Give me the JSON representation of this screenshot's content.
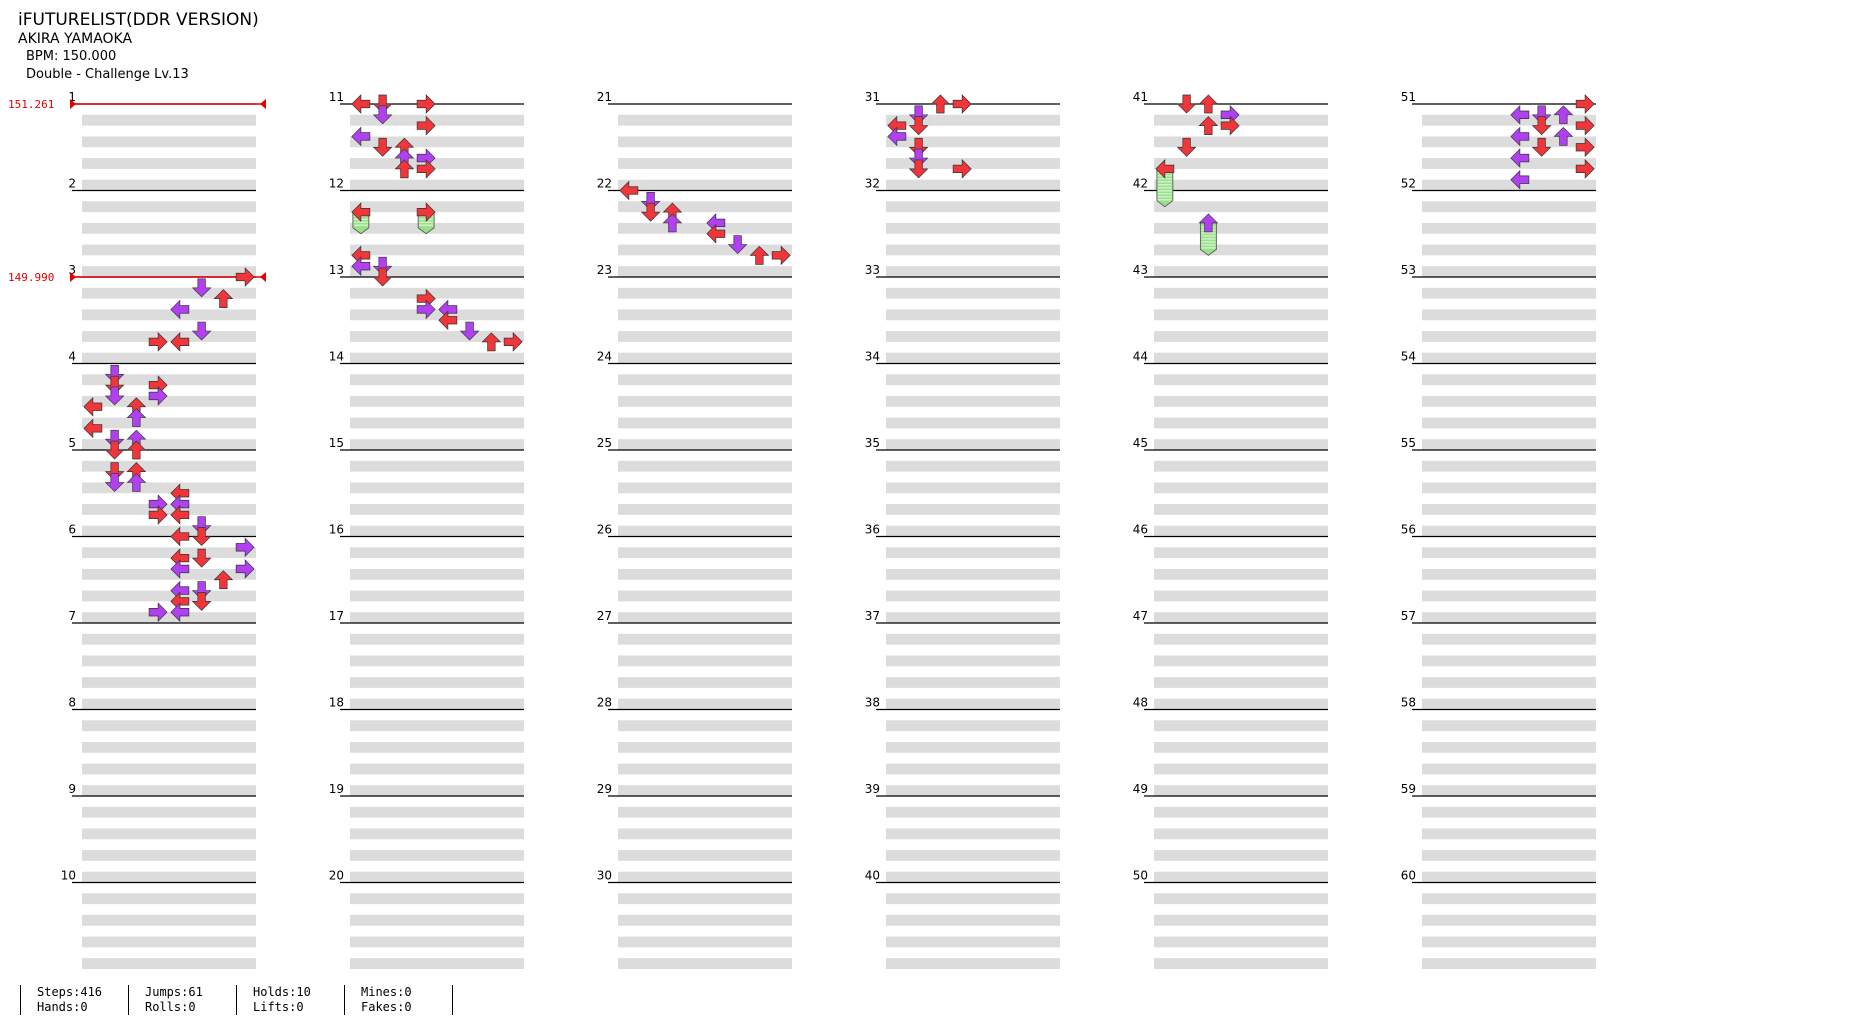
{
  "header": {
    "title": "iFUTURELIST(DDR VERSION)",
    "artist": "AKIRA YAMAOKA",
    "bpm_text": "BPM: 150.000",
    "difficulty_text": "Double - Challenge Lv.13"
  },
  "bpm_changes": [
    {
      "measure": 1,
      "beat": 0,
      "label": "151.261"
    },
    {
      "measure": 3,
      "beat": 0,
      "label": "149.990"
    }
  ],
  "colors": {
    "quarter_note": "#f0363a",
    "eighth_note": "#b040f0",
    "hold_fill": "#9ae08a",
    "shading": "#dcdcdc",
    "bpm_line": "#e00000"
  },
  "chart_data": {
    "type": "step_chart",
    "columns": 6,
    "measures_per_column": 10,
    "total_measures": 60,
    "measure_labels": [
      "1",
      "2",
      "3",
      "4",
      "5",
      "6",
      "7",
      "8",
      "9",
      "10",
      "11",
      "12",
      "13",
      "14",
      "15",
      "16",
      "17",
      "18",
      "19",
      "20",
      "21",
      "22",
      "23",
      "24",
      "25",
      "26",
      "27",
      "28",
      "29",
      "30",
      "31",
      "32",
      "33",
      "34",
      "35",
      "36",
      "37",
      "38",
      "39",
      "40",
      "41",
      "42",
      "43",
      "44",
      "45",
      "46",
      "47",
      "48",
      "49",
      "50",
      "51",
      "52",
      "53",
      "54",
      "55",
      "56",
      "57",
      "58",
      "59",
      "60"
    ],
    "lanes": [
      "P1-left",
      "P1-down",
      "P1-up",
      "P1-right",
      "P2-left",
      "P2-down",
      "P2-up",
      "P2-right"
    ],
    "notes": [
      {
        "m": 3,
        "b": 0,
        "l": 7,
        "d": "R"
      },
      {
        "m": 3,
        "b": 0.5,
        "l": 5,
        "d": "D"
      },
      {
        "m": 3,
        "b": 1,
        "l": 6,
        "d": "U"
      },
      {
        "m": 3,
        "b": 1.5,
        "l": 4,
        "d": "L"
      },
      {
        "m": 3,
        "b": 2.5,
        "l": 5,
        "d": "D"
      },
      {
        "m": 3,
        "b": 3,
        "l": 3,
        "d": "R"
      },
      {
        "m": 3,
        "b": 3,
        "l": 4,
        "d": "L"
      },
      {
        "m": 4,
        "b": 0.5,
        "l": 1,
        "d": "D"
      },
      {
        "m": 4,
        "b": 1,
        "l": 3,
        "d": "R"
      },
      {
        "m": 4,
        "b": 1,
        "l": 1,
        "d": "D"
      },
      {
        "m": 4,
        "b": 1.5,
        "l": 1,
        "d": "D"
      },
      {
        "m": 4,
        "b": 1.5,
        "l": 3,
        "d": "R"
      },
      {
        "m": 4,
        "b": 2,
        "l": 2,
        "d": "U"
      },
      {
        "m": 4,
        "b": 2,
        "l": 0,
        "d": "L"
      },
      {
        "m": 4,
        "b": 2.5,
        "l": 2,
        "d": "U"
      },
      {
        "m": 4,
        "b": 3,
        "l": 0,
        "d": "L"
      },
      {
        "m": 4,
        "b": 3.5,
        "l": 1,
        "d": "D"
      },
      {
        "m": 4,
        "b": 3.5,
        "l": 2,
        "d": "U"
      },
      {
        "m": 5,
        "b": 0,
        "l": 1,
        "d": "D"
      },
      {
        "m": 5,
        "b": 0,
        "l": 2,
        "d": "U"
      },
      {
        "m": 5,
        "b": 1,
        "l": 1,
        "d": "D"
      },
      {
        "m": 5,
        "b": 1,
        "l": 2,
        "d": "U"
      },
      {
        "m": 5,
        "b": 1.5,
        "l": 1,
        "d": "D"
      },
      {
        "m": 5,
        "b": 1.5,
        "l": 2,
        "d": "U"
      },
      {
        "m": 5,
        "b": 2,
        "l": 4,
        "d": "L"
      },
      {
        "m": 5,
        "b": 2.5,
        "l": 3,
        "d": "R"
      },
      {
        "m": 5,
        "b": 2.5,
        "l": 4,
        "d": "L"
      },
      {
        "m": 5,
        "b": 3,
        "l": 3,
        "d": "R"
      },
      {
        "m": 5,
        "b": 3,
        "l": 4,
        "d": "L"
      },
      {
        "m": 5,
        "b": 3.5,
        "l": 5,
        "d": "D"
      },
      {
        "m": 6,
        "b": 0,
        "l": 5,
        "d": "D"
      },
      {
        "m": 6,
        "b": 0,
        "l": 4,
        "d": "L"
      },
      {
        "m": 6,
        "b": 0.5,
        "l": 7,
        "d": "R"
      },
      {
        "m": 6,
        "b": 1,
        "l": 4,
        "d": "L"
      },
      {
        "m": 6,
        "b": 1,
        "l": 5,
        "d": "D"
      },
      {
        "m": 6,
        "b": 1.5,
        "l": 4,
        "d": "L"
      },
      {
        "m": 6,
        "b": 1.5,
        "l": 7,
        "d": "R"
      },
      {
        "m": 6,
        "b": 2,
        "l": 6,
        "d": "U"
      },
      {
        "m": 6,
        "b": 2.5,
        "l": 4,
        "d": "L"
      },
      {
        "m": 6,
        "b": 2.5,
        "l": 5,
        "d": "D"
      },
      {
        "m": 6,
        "b": 3,
        "l": 4,
        "d": "L"
      },
      {
        "m": 6,
        "b": 3,
        "l": 5,
        "d": "D"
      },
      {
        "m": 6,
        "b": 3.5,
        "l": 3,
        "d": "R"
      },
      {
        "m": 6,
        "b": 3.5,
        "l": 4,
        "d": "L"
      },
      {
        "m": 11,
        "b": 0,
        "l": 0,
        "d": "L"
      },
      {
        "m": 11,
        "b": 0,
        "l": 1,
        "d": "D"
      },
      {
        "m": 11,
        "b": 0,
        "l": 3,
        "d": "R"
      },
      {
        "m": 11,
        "b": 0.5,
        "l": 1,
        "d": "D"
      },
      {
        "m": 11,
        "b": 1,
        "l": 3,
        "d": "R"
      },
      {
        "m": 11,
        "b": 1.5,
        "l": 0,
        "d": "L"
      },
      {
        "m": 11,
        "b": 2,
        "l": 1,
        "d": "D"
      },
      {
        "m": 11,
        "b": 2,
        "l": 2,
        "d": "U"
      },
      {
        "m": 11,
        "b": 2.5,
        "l": 2,
        "d": "U"
      },
      {
        "m": 11,
        "b": 2.5,
        "l": 3,
        "d": "R"
      },
      {
        "m": 11,
        "b": 3,
        "l": 2,
        "d": "U"
      },
      {
        "m": 11,
        "b": 3,
        "l": 3,
        "d": "R"
      },
      {
        "m": 12,
        "b": 1,
        "l": 0,
        "d": "L",
        "hold": 1
      },
      {
        "m": 12,
        "b": 1,
        "l": 3,
        "d": "R",
        "hold": 1
      },
      {
        "m": 12,
        "b": 3,
        "l": 0,
        "d": "L"
      },
      {
        "m": 12,
        "b": 3.5,
        "l": 0,
        "d": "L"
      },
      {
        "m": 12,
        "b": 3.5,
        "l": 1,
        "d": "D"
      },
      {
        "m": 13,
        "b": 0,
        "l": 1,
        "d": "D"
      },
      {
        "m": 13,
        "b": 1,
        "l": 3,
        "d": "R"
      },
      {
        "m": 13,
        "b": 1.5,
        "l": 3,
        "d": "R"
      },
      {
        "m": 13,
        "b": 1.5,
        "l": 4,
        "d": "L"
      },
      {
        "m": 13,
        "b": 2,
        "l": 4,
        "d": "L"
      },
      {
        "m": 13,
        "b": 2.5,
        "l": 5,
        "d": "D"
      },
      {
        "m": 13,
        "b": 3,
        "l": 6,
        "d": "U"
      },
      {
        "m": 13,
        "b": 3,
        "l": 7,
        "d": "R"
      },
      {
        "m": 22,
        "b": 0,
        "l": 0,
        "d": "L"
      },
      {
        "m": 22,
        "b": 0.5,
        "l": 1,
        "d": "D"
      },
      {
        "m": 22,
        "b": 1,
        "l": 1,
        "d": "D"
      },
      {
        "m": 22,
        "b": 1,
        "l": 2,
        "d": "U"
      },
      {
        "m": 22,
        "b": 1.5,
        "l": 2,
        "d": "U"
      },
      {
        "m": 22,
        "b": 1.5,
        "l": 4,
        "d": "L"
      },
      {
        "m": 22,
        "b": 2,
        "l": 4,
        "d": "L"
      },
      {
        "m": 22,
        "b": 2.5,
        "l": 5,
        "d": "D"
      },
      {
        "m": 22,
        "b": 3,
        "l": 6,
        "d": "U"
      },
      {
        "m": 22,
        "b": 3,
        "l": 7,
        "d": "R"
      },
      {
        "m": 31,
        "b": 0,
        "l": 2,
        "d": "U"
      },
      {
        "m": 31,
        "b": 0,
        "l": 3,
        "d": "R"
      },
      {
        "m": 31,
        "b": 0.5,
        "l": 1,
        "d": "D"
      },
      {
        "m": 31,
        "b": 1,
        "l": 0,
        "d": "L"
      },
      {
        "m": 31,
        "b": 1,
        "l": 1,
        "d": "D"
      },
      {
        "m": 31,
        "b": 1.5,
        "l": 0,
        "d": "L"
      },
      {
        "m": 31,
        "b": 2,
        "l": 1,
        "d": "D"
      },
      {
        "m": 31,
        "b": 2.5,
        "l": 1,
        "d": "D"
      },
      {
        "m": 31,
        "b": 3,
        "l": 1,
        "d": "D"
      },
      {
        "m": 31,
        "b": 3,
        "l": 3,
        "d": "R"
      },
      {
        "m": 41,
        "b": 0,
        "l": 1,
        "d": "D"
      },
      {
        "m": 41,
        "b": 0,
        "l": 2,
        "d": "U"
      },
      {
        "m": 41,
        "b": 0.5,
        "l": 3,
        "d": "R"
      },
      {
        "m": 41,
        "b": 1,
        "l": 2,
        "d": "U"
      },
      {
        "m": 41,
        "b": 1,
        "l": 3,
        "d": "R"
      },
      {
        "m": 41,
        "b": 2,
        "l": 1,
        "d": "D"
      },
      {
        "m": 41,
        "b": 3,
        "l": 0,
        "d": "L",
        "hold": 1.75
      },
      {
        "m": 42,
        "b": 1.5,
        "l": 2,
        "d": "U",
        "hold": 1.5
      },
      {
        "m": 51,
        "b": 0,
        "l": 7,
        "d": "R"
      },
      {
        "m": 51,
        "b": 0.5,
        "l": 4,
        "d": "L"
      },
      {
        "m": 51,
        "b": 0.5,
        "l": 5,
        "d": "D"
      },
      {
        "m": 51,
        "b": 0.5,
        "l": 6,
        "d": "U"
      },
      {
        "m": 51,
        "b": 1,
        "l": 7,
        "d": "R"
      },
      {
        "m": 51,
        "b": 1,
        "l": 5,
        "d": "D"
      },
      {
        "m": 51,
        "b": 1.5,
        "l": 4,
        "d": "L"
      },
      {
        "m": 51,
        "b": 1.5,
        "l": 6,
        "d": "U"
      },
      {
        "m": 51,
        "b": 2,
        "l": 7,
        "d": "R"
      },
      {
        "m": 51,
        "b": 2,
        "l": 5,
        "d": "D"
      },
      {
        "m": 51,
        "b": 2.5,
        "l": 4,
        "d": "L"
      },
      {
        "m": 51,
        "b": 3,
        "l": 7,
        "d": "R"
      },
      {
        "m": 51,
        "b": 3.5,
        "l": 4,
        "d": "L"
      }
    ]
  },
  "stats": [
    {
      "top": "Steps:416",
      "bottom": "Hands:0"
    },
    {
      "top": "Jumps:61",
      "bottom": "Rolls:0"
    },
    {
      "top": "Holds:10",
      "bottom": "Lifts:0"
    },
    {
      "top": "Mines:0",
      "bottom": "Fakes:0"
    }
  ]
}
